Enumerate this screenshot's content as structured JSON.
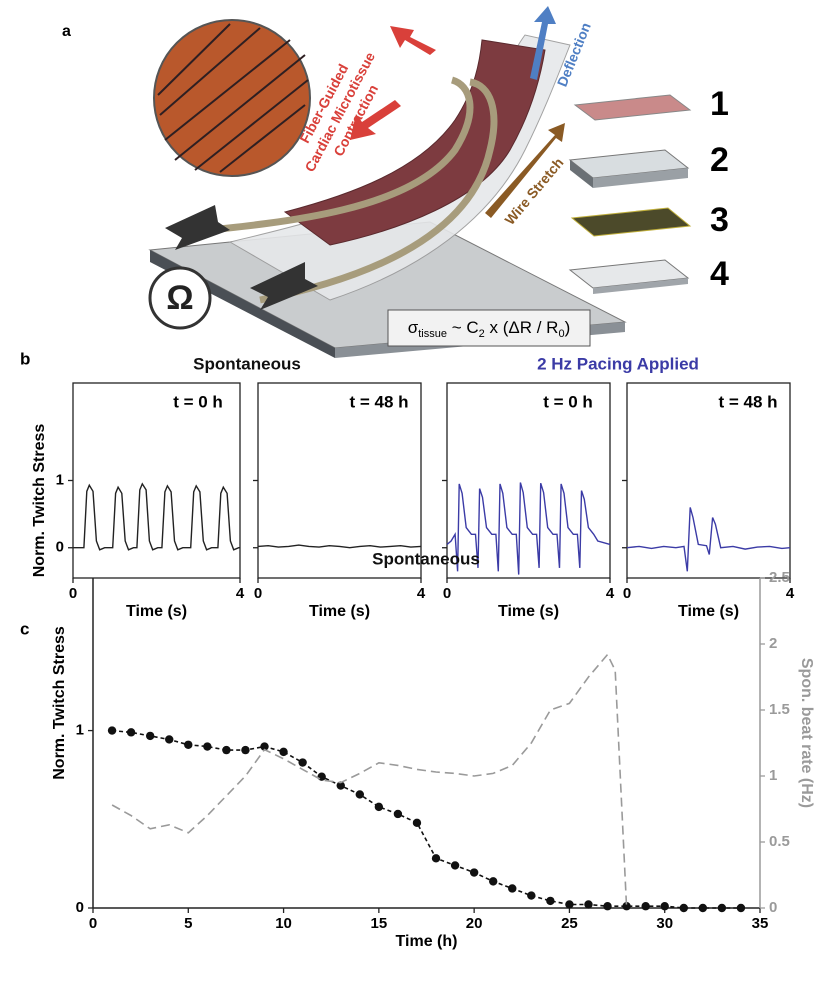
{
  "panel_a": {
    "label": "a",
    "contraction_lines": [
      "Fiber-Guided",
      "Cardiac Microtissue",
      "Contraction"
    ],
    "deflection": "Deflection",
    "wire_stretch": "Wire Stretch",
    "layers": [
      "1",
      "2",
      "3",
      "4"
    ],
    "ohm": "Ω",
    "formula": [
      "σ",
      "tissue",
      " ~ C",
      "2",
      " x (ΔR / R",
      "0",
      ")"
    ]
  },
  "panel_labels": [
    "b",
    "c"
  ],
  "chart_data": [
    {
      "type": "line",
      "title": "Spontaneous",
      "title_color": "#111111",
      "annotation": "t = 0 h",
      "xlabel": "Time (s)",
      "ylabel": "Norm. Twitch Stress",
      "frame": true,
      "show_ytick_labels": true,
      "xlim": [
        0,
        4
      ],
      "xticks": [
        0,
        4
      ],
      "ylim": [
        -0.45,
        2.45
      ],
      "yticks": [
        0,
        1
      ],
      "series": [
        {
          "color": "#222222",
          "x": [
            0,
            0.26,
            0.33,
            0.39,
            0.48,
            0.56,
            0.64,
            0.76,
            0.95,
            1.02,
            1.08,
            1.17,
            1.25,
            1.33,
            1.45,
            1.53,
            1.6,
            1.66,
            1.75,
            1.83,
            1.91,
            2.03,
            2.13,
            2.2,
            2.26,
            2.35,
            2.43,
            2.51,
            2.63,
            2.82,
            2.89,
            2.95,
            3.04,
            3.12,
            3.2,
            3.32,
            3.47,
            3.54,
            3.6,
            3.69,
            3.77,
            3.85,
            3.97,
            4
          ],
          "values": [
            0,
            0,
            0.84,
            0.93,
            0.84,
            0.1,
            -0.03,
            0,
            0,
            0.81,
            0.9,
            0.81,
            0.1,
            -0.03,
            0,
            0,
            0.86,
            0.95,
            0.86,
            0.1,
            -0.03,
            0,
            0,
            0.83,
            0.92,
            0.83,
            0.1,
            -0.03,
            0,
            0,
            0.83,
            0.92,
            0.83,
            0.1,
            -0.03,
            0,
            0,
            0.81,
            0.9,
            0.81,
            0.1,
            -0.03,
            0,
            0
          ]
        }
      ]
    },
    {
      "type": "line",
      "annotation": "t = 48 h",
      "xlabel": "Time (s)",
      "frame": true,
      "show_ytick_labels": false,
      "xlim": [
        0,
        4
      ],
      "xticks": [
        0,
        4
      ],
      "ylim": [
        -0.45,
        2.45
      ],
      "yticks": [
        0,
        1
      ],
      "series": [
        {
          "color": "#222222",
          "x": [
            0,
            0.25,
            0.5,
            0.75,
            1,
            1.25,
            1.5,
            1.75,
            2,
            2.25,
            2.5,
            2.75,
            3,
            3.25,
            3.5,
            3.75,
            4
          ],
          "values": [
            0.02,
            0.03,
            0.01,
            0.02,
            0.04,
            0.02,
            0.01,
            0.03,
            0.02,
            0,
            0.02,
            0.03,
            0.01,
            0.02,
            0.03,
            0.01,
            0.02
          ]
        }
      ]
    },
    {
      "type": "line",
      "title": "2 Hz Pacing Applied",
      "title_color": "#3b3ba6",
      "annotation": "t = 0 h",
      "xlabel": "Time (s)",
      "frame": true,
      "show_ytick_labels": false,
      "xlim": [
        0,
        4
      ],
      "xticks": [
        0,
        4
      ],
      "ylim": [
        -0.45,
        2.45
      ],
      "yticks": [
        0,
        1
      ],
      "series": [
        {
          "color": "#3b3ba6",
          "x": [
            0,
            0.1,
            0.2,
            0.26,
            0.3,
            0.37,
            0.47,
            0.6,
            0.7,
            0.76,
            0.8,
            0.87,
            0.97,
            1.1,
            1.2,
            1.26,
            1.3,
            1.37,
            1.47,
            1.6,
            1.7,
            1.76,
            1.8,
            1.87,
            1.97,
            2.1,
            2.2,
            2.26,
            2.3,
            2.37,
            2.47,
            2.6,
            2.7,
            2.76,
            2.8,
            2.87,
            2.97,
            3.1,
            3.2,
            3.26,
            3.3,
            3.37,
            3.47,
            3.6,
            3.7,
            4
          ],
          "values": [
            0.05,
            0.1,
            0.2,
            -0.35,
            0.95,
            0.81,
            0.3,
            0.2,
            0.2,
            -0.3,
            0.88,
            0.75,
            0.3,
            0.2,
            0.2,
            -0.35,
            0.95,
            0.81,
            0.3,
            0.2,
            0.2,
            -0.4,
            0.97,
            0.82,
            0.3,
            0.2,
            0.2,
            -0.3,
            0.96,
            0.82,
            0.3,
            0.2,
            0.2,
            -0.3,
            0.95,
            0.81,
            0.3,
            0.2,
            0.2,
            -0.3,
            0.85,
            0.72,
            0.3,
            0.2,
            0.1,
            0.05
          ]
        }
      ]
    },
    {
      "type": "line",
      "annotation": "t = 48 h",
      "xlabel": "Time (s)",
      "frame": true,
      "show_ytick_labels": false,
      "xlim": [
        0,
        4
      ],
      "xticks": [
        0,
        4
      ],
      "ylim": [
        -0.45,
        2.45
      ],
      "yticks": [
        0,
        1
      ],
      "series": [
        {
          "color": "#3b3ba6",
          "x": [
            0,
            0.3,
            0.6,
            0.9,
            1.2,
            1.4,
            1.48,
            1.55,
            1.62,
            1.75,
            1.95,
            2.02,
            2.1,
            2.17,
            2.3,
            2.6,
            2.9,
            3.2,
            3.5,
            3.8,
            4
          ],
          "values": [
            0,
            0.02,
            -0.01,
            0.02,
            0,
            0.02,
            -0.35,
            0.6,
            0.45,
            0.05,
            0.03,
            -0.1,
            0.45,
            0.35,
            0,
            0.02,
            -0.02,
            0.01,
            0.02,
            -0.01,
            0
          ]
        }
      ]
    },
    {
      "type": "line",
      "title": "Spontaneous",
      "title_color": "#111111",
      "xlabel": "Time (h)",
      "ylabel": "Norm. Twitch Stress",
      "y2label": "Spon. beat rate (Hz)",
      "y2color": "#9a9a9a",
      "frame": false,
      "show_ytick_labels": true,
      "xlim": [
        0,
        35
      ],
      "xticks": [
        0,
        5,
        10,
        15,
        20,
        25,
        30,
        35
      ],
      "ylim": [
        0,
        1.86
      ],
      "yticks": [
        0,
        1
      ],
      "y2lim": [
        0,
        2.5
      ],
      "y2ticks": [
        0,
        0.5,
        1,
        1.5,
        2,
        2.5
      ],
      "series": [
        {
          "color": "#111111",
          "marker": "circle",
          "dash": true,
          "x": [
            1,
            2,
            3,
            4,
            5,
            6,
            7,
            8,
            9,
            10,
            11,
            12,
            13,
            14,
            15,
            16,
            17,
            18,
            19,
            20,
            21,
            22,
            23,
            24,
            25,
            26,
            27,
            28,
            29,
            30,
            31,
            32,
            33,
            34
          ],
          "values": [
            1,
            0.99,
            0.97,
            0.95,
            0.92,
            0.91,
            0.89,
            0.89,
            0.91,
            0.88,
            0.82,
            0.74,
            0.69,
            0.64,
            0.57,
            0.53,
            0.48,
            0.28,
            0.24,
            0.2,
            0.15,
            0.11,
            0.07,
            0.04,
            0.02,
            0.02,
            0.01,
            0.01,
            0.01,
            0.01,
            0,
            0,
            0,
            0
          ]
        },
        {
          "color": "#9a9a9a",
          "dash": true,
          "axis": "y2",
          "x": [
            1,
            2,
            3,
            4,
            5,
            6,
            7,
            8,
            9,
            10,
            11,
            12,
            13,
            14,
            15,
            16,
            17,
            18,
            19,
            20,
            21,
            22,
            23,
            24,
            25,
            26,
            27,
            27.4,
            28
          ],
          "values": [
            0.78,
            0.7,
            0.6,
            0.63,
            0.57,
            0.7,
            0.85,
            1,
            1.2,
            1.13,
            1.05,
            0.97,
            0.95,
            1.02,
            1.1,
            1.08,
            1.05,
            1.03,
            1.02,
            1,
            1.02,
            1.08,
            1.25,
            1.5,
            1.55,
            1.75,
            1.92,
            1.8,
            0
          ]
        }
      ]
    }
  ]
}
